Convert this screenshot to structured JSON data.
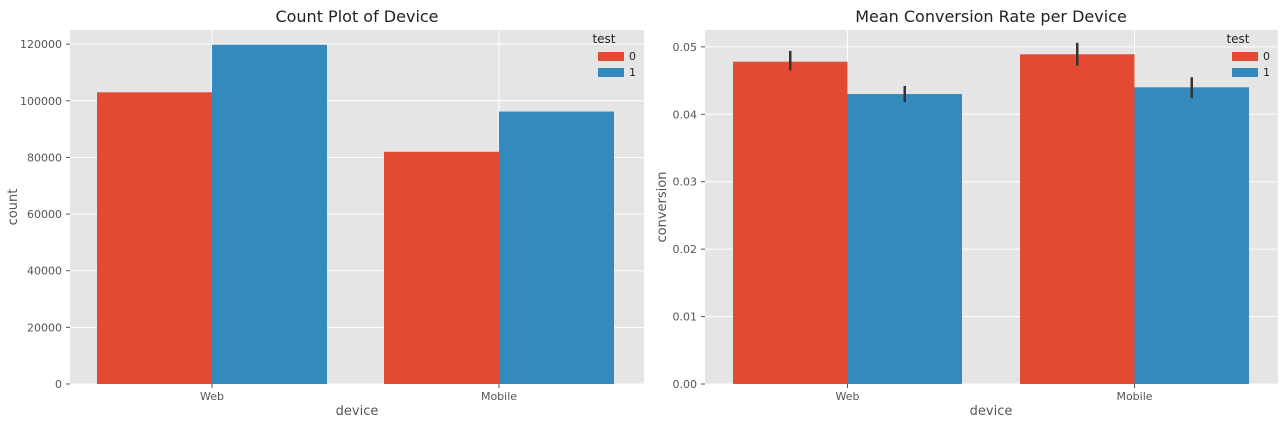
{
  "chart_data": [
    {
      "type": "bar",
      "title": "Count Plot of Device",
      "xlabel": "device",
      "ylabel": "count",
      "categories": [
        "Web",
        "Mobile"
      ],
      "series": [
        {
          "name": "0",
          "values": [
            103000,
            82000
          ],
          "color": "#E24A33"
        },
        {
          "name": "1",
          "values": [
            119800,
            96200
          ],
          "color": "#348ABD"
        }
      ],
      "ylim": [
        0,
        125000
      ],
      "yticks": [
        0,
        20000,
        40000,
        60000,
        80000,
        100000,
        120000
      ],
      "legend": {
        "title": "test",
        "placement": "top-right"
      },
      "grid": true
    },
    {
      "type": "bar",
      "title": "Mean Conversion Rate per Device",
      "xlabel": "device",
      "ylabel": "conversion",
      "categories": [
        "Web",
        "Mobile"
      ],
      "series": [
        {
          "name": "0",
          "values": [
            0.0478,
            0.0489
          ],
          "error": [
            [
              0.0465,
              0.0494
            ],
            [
              0.0472,
              0.0506
            ]
          ],
          "color": "#E24A33"
        },
        {
          "name": "1",
          "values": [
            0.043,
            0.044
          ],
          "error": [
            [
              0.0418,
              0.0442
            ],
            [
              0.0424,
              0.0455
            ]
          ],
          "color": "#348ABD"
        }
      ],
      "ylim": [
        0,
        0.0525
      ],
      "yticks": [
        "0.00",
        "0.01",
        "0.02",
        "0.03",
        "0.04",
        "0.05"
      ],
      "legend": {
        "title": "test",
        "placement": "top-right"
      },
      "grid": true
    }
  ]
}
